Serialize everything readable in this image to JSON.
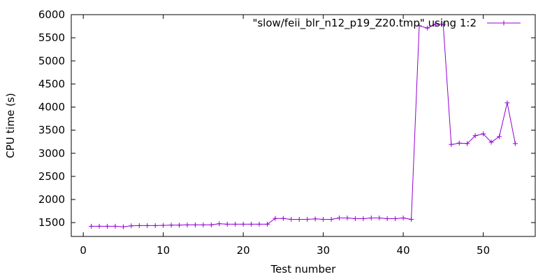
{
  "chart_data": {
    "type": "line",
    "xlabel": "Test number",
    "ylabel": "CPU time (s)",
    "xlim": [
      -1.5,
      56.5
    ],
    "ylim": [
      1200,
      6000
    ],
    "xticks": [
      0,
      10,
      20,
      30,
      40,
      50
    ],
    "yticks": [
      1500,
      2000,
      2500,
      3000,
      3500,
      4000,
      4500,
      5000,
      5500,
      6000
    ],
    "grid": false,
    "legend_position": "top-right",
    "series_color": "#9400d3",
    "series": [
      {
        "name": "\"slow/feii_blr_n12_p19_Z20.tmp\" using 1:2",
        "x": [
          1,
          2,
          3,
          4,
          5,
          6,
          7,
          8,
          9,
          10,
          11,
          12,
          13,
          14,
          15,
          16,
          17,
          18,
          19,
          20,
          21,
          22,
          23,
          24,
          25,
          26,
          27,
          28,
          29,
          30,
          31,
          32,
          33,
          34,
          35,
          36,
          37,
          38,
          39,
          40,
          41,
          42,
          43,
          44,
          45,
          46,
          47,
          48,
          49,
          50,
          51,
          52,
          53,
          54
        ],
        "y": [
          1420,
          1420,
          1420,
          1420,
          1410,
          1430,
          1435,
          1435,
          1435,
          1440,
          1445,
          1445,
          1450,
          1450,
          1450,
          1450,
          1475,
          1465,
          1465,
          1465,
          1465,
          1465,
          1465,
          1590,
          1590,
          1570,
          1570,
          1570,
          1580,
          1570,
          1570,
          1600,
          1600,
          1585,
          1585,
          1600,
          1600,
          1585,
          1585,
          1600,
          1570,
          5760,
          5710,
          5790,
          5790,
          3190,
          3220,
          3210,
          3380,
          3420,
          3240,
          3360,
          4090,
          3210
        ]
      }
    ]
  }
}
